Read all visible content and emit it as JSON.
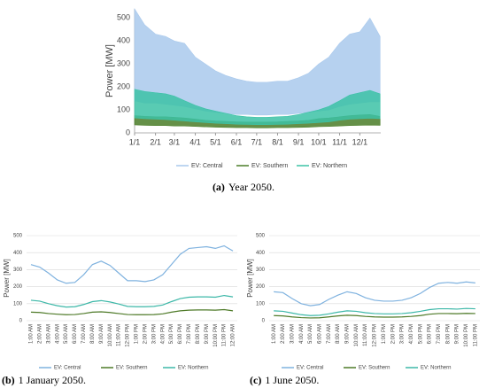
{
  "chart_data": [
    {
      "type": "area-range",
      "label": "(a)",
      "caption": "Year 2050.",
      "y_label": "Power [MW]",
      "x": [
        1,
        16,
        32,
        47,
        60,
        75,
        91,
        106,
        121,
        136,
        152,
        167,
        182,
        197,
        213,
        228,
        244,
        259,
        274,
        289,
        305,
        320,
        335,
        350,
        365
      ],
      "xlim": [
        1,
        366
      ],
      "xticks": [
        {
          "value": 1,
          "label": "1/1"
        },
        {
          "value": 32,
          "label": "2/1"
        },
        {
          "value": 60,
          "label": "3/1"
        },
        {
          "value": 91,
          "label": "4/1"
        },
        {
          "value": 121,
          "label": "5/1"
        },
        {
          "value": 152,
          "label": "6/1"
        },
        {
          "value": 182,
          "label": "7/1"
        },
        {
          "value": 213,
          "label": "8/1"
        },
        {
          "value": 244,
          "label": "9/1"
        },
        {
          "value": 274,
          "label": "10/1"
        },
        {
          "value": 305,
          "label": "11/1"
        },
        {
          "value": 335,
          "label": "12/1"
        }
      ],
      "ylim": [
        0,
        540
      ],
      "yticks": [
        0,
        100,
        200,
        300,
        400,
        500
      ],
      "grid": false,
      "series": [
        {
          "name": "EV: Central",
          "color": "#a9c9ec",
          "values": [
            540,
            470,
            430,
            420,
            400,
            390,
            330,
            300,
            270,
            250,
            235,
            225,
            220,
            220,
            225,
            225,
            240,
            260,
            300,
            330,
            390,
            430,
            440,
            500,
            420
          ],
          "lows": [
            140,
            130,
            130,
            125,
            120,
            115,
            105,
            95,
            90,
            85,
            80,
            80,
            78,
            78,
            80,
            80,
            85,
            90,
            95,
            100,
            115,
            125,
            130,
            135,
            135
          ]
        },
        {
          "name": "EV: Southern",
          "color": "#4a7d28",
          "values": [
            75,
            72,
            70,
            70,
            68,
            65,
            60,
            55,
            52,
            50,
            48,
            47,
            47,
            47,
            48,
            50,
            52,
            55,
            62,
            65,
            70,
            75,
            78,
            80,
            72
          ],
          "lows": [
            35,
            33,
            32,
            32,
            30,
            30,
            28,
            26,
            25,
            24,
            23,
            23,
            22,
            22,
            23,
            23,
            24,
            25,
            27,
            28,
            30,
            32,
            33,
            34,
            33
          ]
        },
        {
          "name": "EV: Northern",
          "color": "#3cc2a6",
          "values": [
            190,
            180,
            175,
            170,
            160,
            140,
            120,
            105,
            95,
            85,
            75,
            70,
            68,
            68,
            70,
            72,
            80,
            90,
            100,
            115,
            140,
            165,
            175,
            185,
            170
          ],
          "lows": [
            65,
            62,
            60,
            58,
            55,
            52,
            48,
            45,
            42,
            40,
            38,
            37,
            36,
            36,
            37,
            38,
            40,
            42,
            45,
            48,
            55,
            60,
            62,
            64,
            62
          ]
        }
      ]
    },
    {
      "type": "line",
      "label": "(b)",
      "caption": "1 January 2050.",
      "y_label": "Power [MW]",
      "categories": [
        "1:00 AM",
        "2:00 AM",
        "3:00 AM",
        "4:00 AM",
        "5:00 AM",
        "6:00 AM",
        "7:00 AM",
        "8:00 AM",
        "9:00 AM",
        "10:00 AM",
        "11:00 AM",
        "12:00 PM",
        "1:00 PM",
        "2:00 PM",
        "3:00 PM",
        "4:00 PM",
        "5:00 PM",
        "6:00 PM",
        "7:00 PM",
        "8:00 PM",
        "9:00 PM",
        "10:00 PM",
        "11:00 PM",
        "12:00 AM"
      ],
      "ylim": [
        0,
        500
      ],
      "yticks": [
        0,
        100,
        200,
        300,
        400,
        500
      ],
      "grid": true,
      "series": [
        {
          "name": "EV: Central",
          "color": "#7fb2df",
          "values": [
            330,
            315,
            280,
            240,
            220,
            225,
            270,
            330,
            350,
            325,
            280,
            235,
            235,
            230,
            240,
            270,
            330,
            390,
            425,
            430,
            435,
            425,
            440,
            410
          ]
        },
        {
          "name": "EV: Southern",
          "color": "#4e7a28",
          "values": [
            50,
            48,
            42,
            38,
            35,
            36,
            42,
            50,
            52,
            48,
            42,
            36,
            35,
            35,
            36,
            40,
            50,
            58,
            62,
            63,
            63,
            62,
            65,
            58
          ]
        },
        {
          "name": "EV: Northern",
          "color": "#3db8a8",
          "values": [
            120,
            115,
            100,
            88,
            80,
            82,
            95,
            112,
            118,
            110,
            98,
            84,
            82,
            82,
            84,
            92,
            112,
            130,
            138,
            140,
            140,
            138,
            148,
            140
          ]
        }
      ]
    },
    {
      "type": "line",
      "label": "(c)",
      "caption": "1 June 2050.",
      "y_label": "Power [MW]",
      "categories": [
        "1:00 AM",
        "2:00 AM",
        "3:00 AM",
        "4:00 AM",
        "5:00 AM",
        "6:00 AM",
        "7:00 AM",
        "8:00 AM",
        "9:00 AM",
        "10:00 AM",
        "11:00 AM",
        "12:00 PM",
        "1:00 PM",
        "2:00 PM",
        "3:00 PM",
        "4:00 PM",
        "5:00 PM",
        "6:00 PM",
        "7:00 PM",
        "8:00 PM",
        "9:00 PM",
        "10:00 PM",
        "11:00 PM"
      ],
      "ylim": [
        0,
        500
      ],
      "yticks": [
        0,
        100,
        200,
        300,
        400,
        500
      ],
      "grid": true,
      "series": [
        {
          "name": "EV: Central",
          "color": "#7fb2df",
          "values": [
            170,
            165,
            130,
            100,
            88,
            95,
            125,
            150,
            170,
            160,
            135,
            120,
            115,
            115,
            120,
            135,
            160,
            195,
            220,
            225,
            220,
            228,
            222
          ]
        },
        {
          "name": "EV: Southern",
          "color": "#4e7a28",
          "values": [
            30,
            28,
            22,
            18,
            16,
            17,
            22,
            28,
            32,
            30,
            25,
            22,
            21,
            21,
            22,
            25,
            30,
            38,
            42,
            42,
            41,
            43,
            42
          ]
        },
        {
          "name": "EV: Northern",
          "color": "#3db8a8",
          "values": [
            58,
            55,
            45,
            35,
            30,
            32,
            40,
            50,
            58,
            55,
            47,
            42,
            40,
            40,
            42,
            47,
            55,
            65,
            70,
            70,
            68,
            72,
            70
          ]
        }
      ]
    }
  ]
}
